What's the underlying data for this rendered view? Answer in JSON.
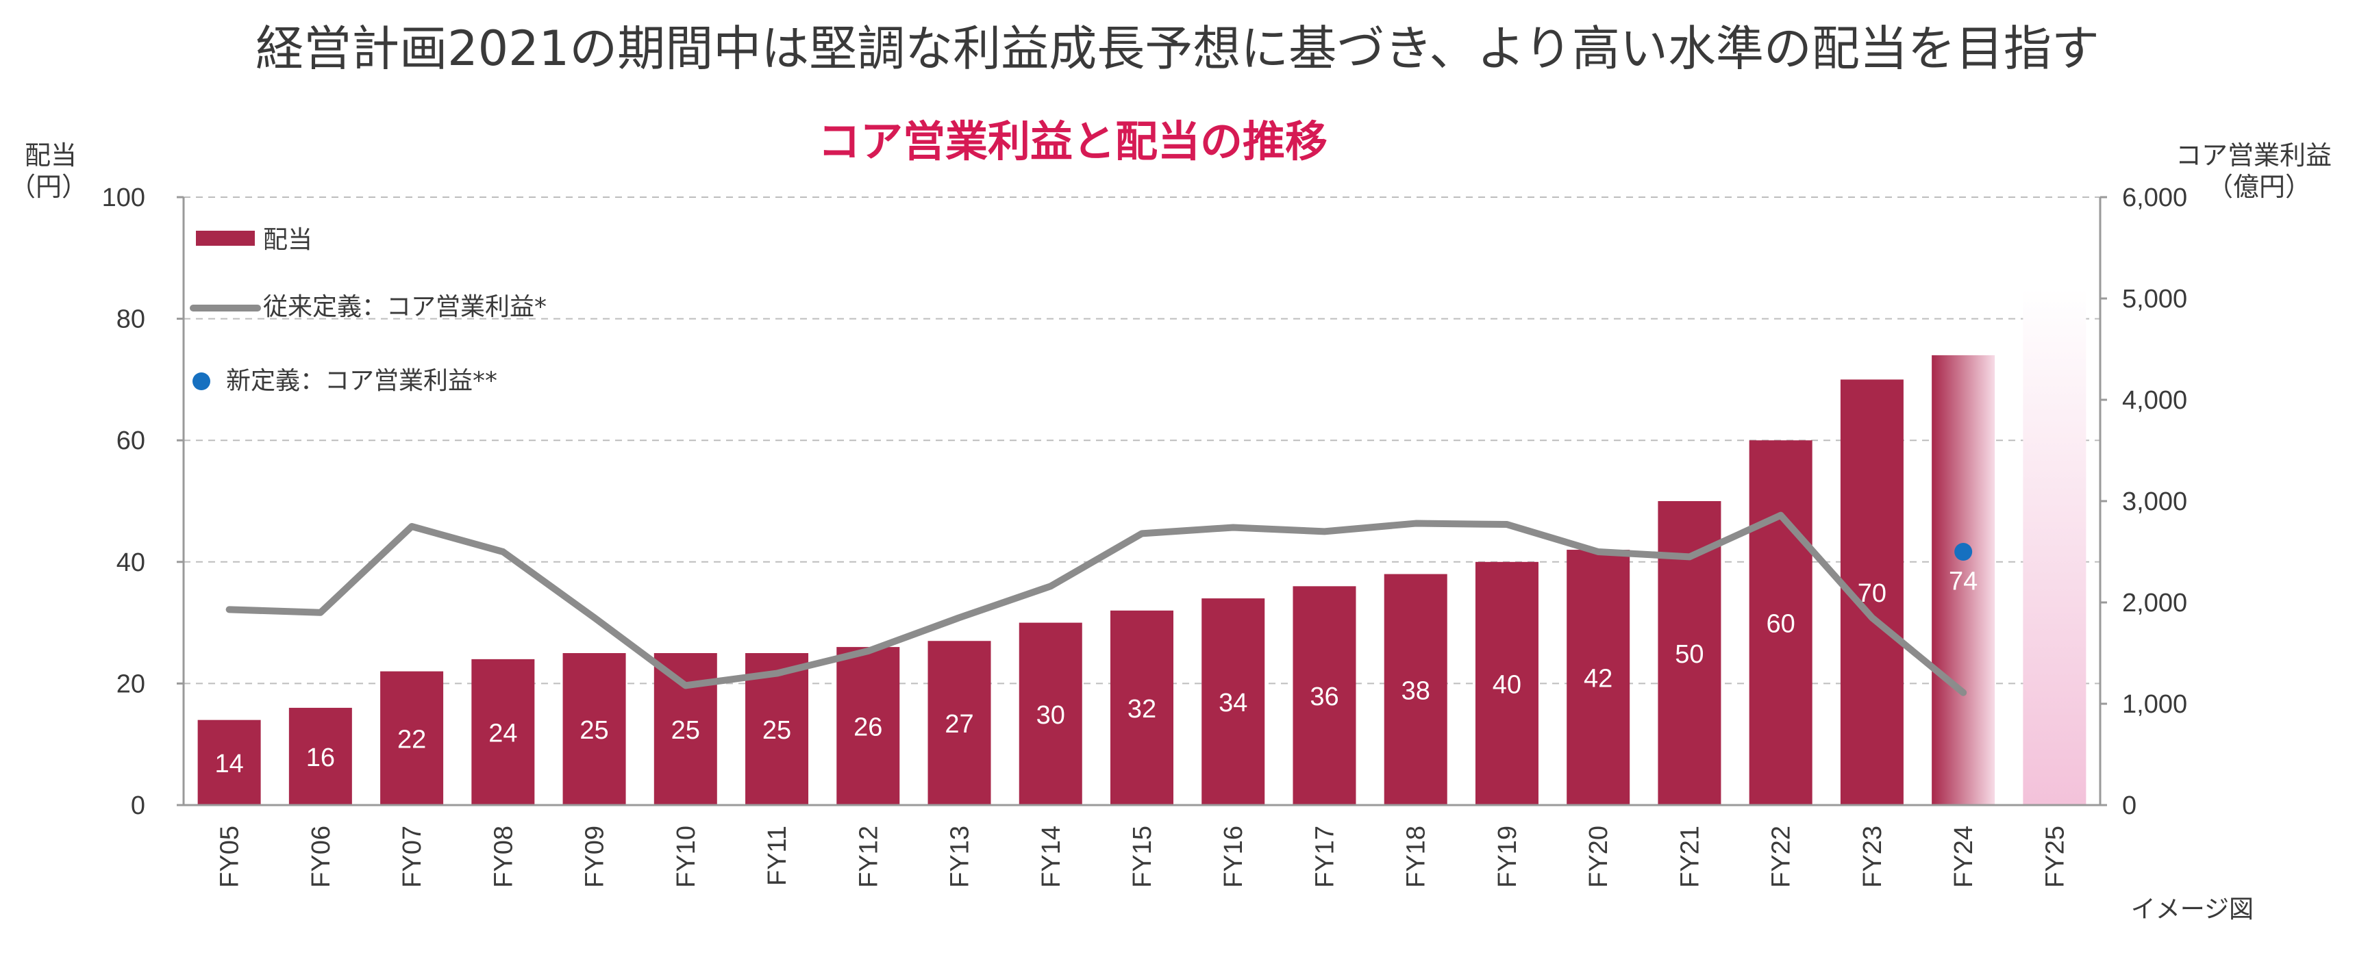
{
  "title": "経営計画2021の期間中は堅調な利益成長予想に基づき、より高い水準の配当を目指す",
  "subtitle": "コア営業利益と配当の推移",
  "left_axis_label_line1": "配当",
  "left_axis_label_line2": "（円）",
  "right_axis_label_line1": "コア営業利益",
  "right_axis_label_line2": "（億円）",
  "note": "イメージ図",
  "colors": {
    "bar": "#a8274a",
    "line": "#8c8c8c",
    "dot": "#1670c0",
    "grid": "#bdbdbd",
    "projection": "#f3c6dd"
  },
  "chart_data": {
    "type": "bar",
    "categories": [
      "FY05",
      "FY06",
      "FY07",
      "FY08",
      "FY09",
      "FY10",
      "FY11",
      "FY12",
      "FY13",
      "FY14",
      "FY15",
      "FY16",
      "FY17",
      "FY18",
      "FY19",
      "FY20",
      "FY21",
      "FY22",
      "FY23",
      "FY24",
      "FY25"
    ],
    "y_left_ticks": [
      "0",
      "20",
      "40",
      "60",
      "80",
      "100"
    ],
    "y_right_ticks": [
      "0",
      "1,000",
      "2,000",
      "3,000",
      "4,000",
      "5,000",
      "6,000"
    ],
    "ylim_left": [
      0,
      100
    ],
    "ylim_right": [
      0,
      6000
    ],
    "legend_placement": "top-left",
    "grid": true,
    "series": [
      {
        "name": "配当",
        "kind": "bar",
        "axis": "left",
        "values": [
          14,
          16,
          22,
          24,
          25,
          25,
          25,
          26,
          27,
          30,
          32,
          34,
          36,
          38,
          40,
          42,
          50,
          60,
          70,
          74,
          null
        ],
        "labels": [
          "14",
          "16",
          "22",
          "24",
          "25",
          "25",
          "25",
          "26",
          "27",
          "30",
          "32",
          "34",
          "36",
          "38",
          "40",
          "42",
          "50",
          "60",
          "70",
          "74",
          ""
        ]
      },
      {
        "name": "従来定義：コア営業利益*",
        "kind": "line",
        "axis": "right",
        "values": [
          1930,
          1900,
          2750,
          2500,
          1850,
          1180,
          1300,
          1520,
          1850,
          2160,
          2680,
          2740,
          2700,
          2780,
          2770,
          2500,
          2450,
          2860,
          1850,
          1110,
          null
        ]
      },
      {
        "name": "新定義：コア営業利益**",
        "kind": "point",
        "axis": "right",
        "values": [
          null,
          null,
          null,
          null,
          null,
          null,
          null,
          null,
          null,
          null,
          null,
          null,
          null,
          null,
          null,
          null,
          null,
          null,
          null,
          2500,
          null
        ]
      }
    ],
    "projection": {
      "category": "FY25",
      "value_right": 5100
    }
  }
}
